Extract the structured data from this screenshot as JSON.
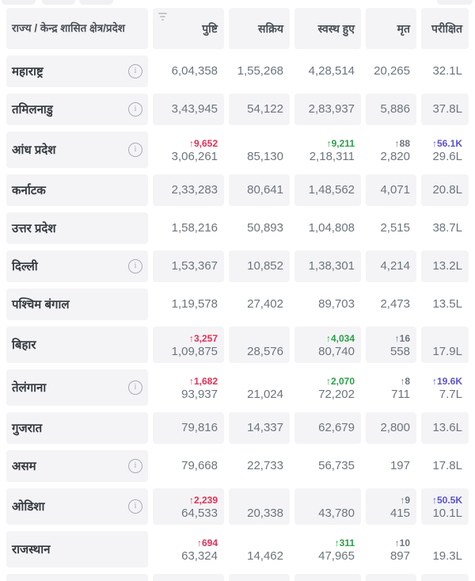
{
  "header": {
    "columns": [
      "राज्य / केन्द्र शासित क्षेत्र/प्रदेश",
      "पुष्टि",
      "सक्रिय",
      "स्वस्थ हुए",
      "मृत",
      "परीक्षित"
    ],
    "sorted_column": "पुष्टि"
  },
  "icons": {
    "info_glyph": "i",
    "delta_arrow": "↑",
    "filter_icon": "filter-lines"
  },
  "colors": {
    "cell_background": "#f4f4f6",
    "state_text": "#343a40",
    "header_text": "#495057",
    "number_text": "#6c757d",
    "delta_confirmed": "#e62e55",
    "delta_recovered": "#2aa147",
    "delta_deaths": "#6c757d",
    "delta_tested": "#5a53cf",
    "icon_gray": "#a9adb5"
  },
  "rows": [
    {
      "state": "महाराष्ट्र",
      "info": true,
      "cells": {
        "confirmed": {
          "value": "6,04,358"
        },
        "active": {
          "value": "1,55,268"
        },
        "recovered": {
          "value": "4,28,514"
        },
        "deaths": {
          "value": "20,265"
        },
        "tested": {
          "value": "32.1L"
        }
      }
    },
    {
      "state": "तमिलनाडु",
      "info": true,
      "cells": {
        "confirmed": {
          "value": "3,43,945"
        },
        "active": {
          "value": "54,122"
        },
        "recovered": {
          "value": "2,83,937"
        },
        "deaths": {
          "value": "5,886"
        },
        "tested": {
          "value": "37.8L"
        }
      }
    },
    {
      "state": "आंध प्रदेश",
      "info": true,
      "cells": {
        "confirmed": {
          "delta": "↑9,652",
          "value": "3,06,261"
        },
        "active": {
          "value": "85,130"
        },
        "recovered": {
          "delta": "↑9,211",
          "value": "2,18,311"
        },
        "deaths": {
          "delta": "↑88",
          "value": "2,820"
        },
        "tested": {
          "delta": "↑56.1K",
          "value": "29.6L"
        }
      }
    },
    {
      "state": "कर्नाटक",
      "info": false,
      "cells": {
        "confirmed": {
          "value": "2,33,283"
        },
        "active": {
          "value": "80,641"
        },
        "recovered": {
          "value": "1,48,562"
        },
        "deaths": {
          "value": "4,071"
        },
        "tested": {
          "value": "20.8L"
        }
      }
    },
    {
      "state": "उत्तर प्रदेश",
      "info": false,
      "cells": {
        "confirmed": {
          "value": "1,58,216"
        },
        "active": {
          "value": "50,893"
        },
        "recovered": {
          "value": "1,04,808"
        },
        "deaths": {
          "value": "2,515"
        },
        "tested": {
          "value": "38.7L"
        }
      }
    },
    {
      "state": "दिल्ली",
      "info": true,
      "cells": {
        "confirmed": {
          "value": "1,53,367"
        },
        "active": {
          "value": "10,852"
        },
        "recovered": {
          "value": "1,38,301"
        },
        "deaths": {
          "value": "4,214"
        },
        "tested": {
          "value": "13.2L"
        }
      }
    },
    {
      "state": "पश्चिम बंगाल",
      "info": false,
      "cells": {
        "confirmed": {
          "value": "1,19,578"
        },
        "active": {
          "value": "27,402"
        },
        "recovered": {
          "value": "89,703"
        },
        "deaths": {
          "value": "2,473"
        },
        "tested": {
          "value": "13.5L"
        }
      }
    },
    {
      "state": "बिहार",
      "info": false,
      "cells": {
        "confirmed": {
          "delta": "↑3,257",
          "value": "1,09,875"
        },
        "active": {
          "value": "28,576"
        },
        "recovered": {
          "delta": "↑4,034",
          "value": "80,740"
        },
        "deaths": {
          "delta": "↑16",
          "value": "558"
        },
        "tested": {
          "value": "17.9L"
        }
      }
    },
    {
      "state": "तेलंगाना",
      "info": true,
      "cells": {
        "confirmed": {
          "delta": "↑1,682",
          "value": "93,937"
        },
        "active": {
          "value": "21,024"
        },
        "recovered": {
          "delta": "↑2,070",
          "value": "72,202"
        },
        "deaths": {
          "delta": "↑8",
          "value": "711"
        },
        "tested": {
          "delta": "↑19.6K",
          "value": "7.7L"
        }
      }
    },
    {
      "state": "गुजरात",
      "info": false,
      "cells": {
        "confirmed": {
          "value": "79,816"
        },
        "active": {
          "value": "14,337"
        },
        "recovered": {
          "value": "62,679"
        },
        "deaths": {
          "value": "2,800"
        },
        "tested": {
          "value": "13.6L"
        }
      }
    },
    {
      "state": "असम",
      "info": true,
      "cells": {
        "confirmed": {
          "value": "79,668"
        },
        "active": {
          "value": "22,733"
        },
        "recovered": {
          "value": "56,735"
        },
        "deaths": {
          "value": "197"
        },
        "tested": {
          "value": "17.8L"
        }
      }
    },
    {
      "state": "ओडिशा",
      "info": true,
      "cells": {
        "confirmed": {
          "delta": "↑2,239",
          "value": "64,533"
        },
        "active": {
          "value": "20,338"
        },
        "recovered": {
          "value": "43,780"
        },
        "deaths": {
          "delta": "↑9",
          "value": "415"
        },
        "tested": {
          "delta": "↑50.5K",
          "value": "10.1L"
        }
      }
    },
    {
      "state": "राजस्थान",
      "info": false,
      "cells": {
        "confirmed": {
          "delta": "↑694",
          "value": "63,324"
        },
        "active": {
          "value": "14,462"
        },
        "recovered": {
          "delta": "↑311",
          "value": "47,965"
        },
        "deaths": {
          "delta": "↑10",
          "value": "897"
        },
        "tested": {
          "value": "19.3L"
        }
      }
    }
  ],
  "partial_next_row": true
}
